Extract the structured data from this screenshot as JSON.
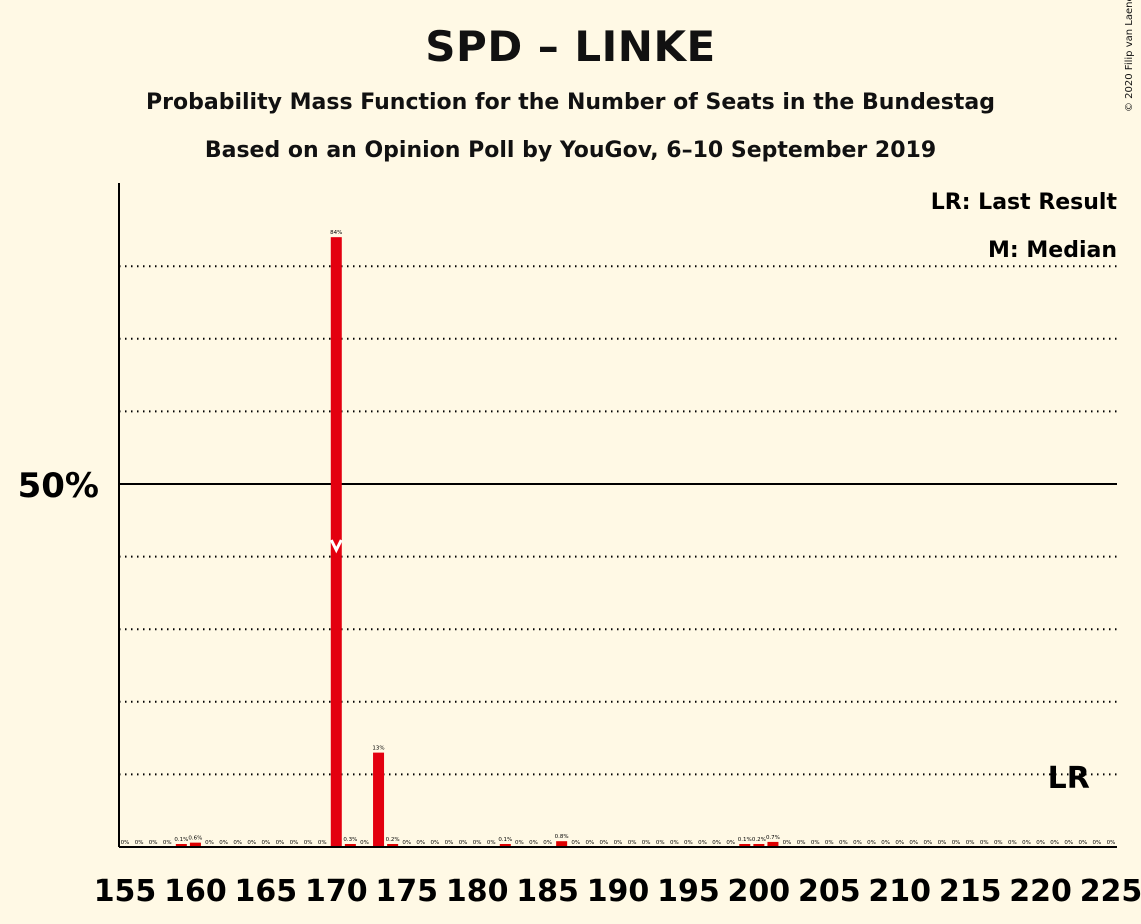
{
  "header": {
    "title": "SPD – LINKE",
    "subtitle1": "Probability Mass Function for the Number of Seats in the Bundestag",
    "subtitle2": "Based on an Opinion Poll by YouGov, 6–10 September 2019",
    "copyright": "© 2020 Filip van Laenen"
  },
  "legend": {
    "last_result": "LR: Last Result",
    "median": "M: Median"
  },
  "colors": {
    "background": "#FFF9E5",
    "bar": "#E3000F",
    "bar_alt": "#DD0000",
    "axis": "#000000"
  },
  "chart_data": {
    "type": "bar",
    "xlim": [
      155,
      225
    ],
    "ylim": [
      0,
      100
    ],
    "x_ticks": [
      155,
      160,
      165,
      170,
      175,
      180,
      185,
      190,
      195,
      200,
      205,
      210,
      215,
      220,
      225
    ],
    "y_major_tick": {
      "value": 50,
      "label": "50%"
    },
    "y_gridlines": [
      10,
      20,
      30,
      40,
      60,
      70,
      80
    ],
    "grid": true,
    "legend_position": "top-right",
    "median_seat": 170,
    "last_result_seat": 222,
    "last_result_label": "LR",
    "bars": [
      {
        "x": 155,
        "value": 0,
        "label": "0%"
      },
      {
        "x": 156,
        "value": 0,
        "label": "0%"
      },
      {
        "x": 157,
        "value": 0,
        "label": "0%"
      },
      {
        "x": 158,
        "value": 0,
        "label": "0%"
      },
      {
        "x": 159,
        "value": 0.1,
        "label": "0.1%"
      },
      {
        "x": 160,
        "value": 0.6,
        "label": "0.6%"
      },
      {
        "x": 161,
        "value": 0,
        "label": "0%"
      },
      {
        "x": 162,
        "value": 0,
        "label": "0%"
      },
      {
        "x": 163,
        "value": 0,
        "label": "0%"
      },
      {
        "x": 164,
        "value": 0,
        "label": "0%"
      },
      {
        "x": 165,
        "value": 0,
        "label": "0%"
      },
      {
        "x": 166,
        "value": 0,
        "label": "0%"
      },
      {
        "x": 167,
        "value": 0,
        "label": "0%"
      },
      {
        "x": 168,
        "value": 0,
        "label": "0%"
      },
      {
        "x": 169,
        "value": 0,
        "label": "0%"
      },
      {
        "x": 170,
        "value": 84,
        "label": "84%"
      },
      {
        "x": 171,
        "value": 0.3,
        "label": "0.3%"
      },
      {
        "x": 172,
        "value": 0,
        "label": "0%"
      },
      {
        "x": 173,
        "value": 13,
        "label": "13%"
      },
      {
        "x": 174,
        "value": 0.2,
        "label": "0.2%"
      },
      {
        "x": 175,
        "value": 0,
        "label": "0%"
      },
      {
        "x": 176,
        "value": 0,
        "label": "0%"
      },
      {
        "x": 177,
        "value": 0,
        "label": "0%"
      },
      {
        "x": 178,
        "value": 0,
        "label": "0%"
      },
      {
        "x": 179,
        "value": 0,
        "label": "0%"
      },
      {
        "x": 180,
        "value": 0,
        "label": "0%"
      },
      {
        "x": 181,
        "value": 0,
        "label": "0%"
      },
      {
        "x": 182,
        "value": 0.1,
        "label": "0.1%"
      },
      {
        "x": 183,
        "value": 0,
        "label": "0%"
      },
      {
        "x": 184,
        "value": 0,
        "label": "0%"
      },
      {
        "x": 185,
        "value": 0,
        "label": "0%"
      },
      {
        "x": 186,
        "value": 0.8,
        "label": "0.8%"
      },
      {
        "x": 187,
        "value": 0,
        "label": "0%"
      },
      {
        "x": 188,
        "value": 0,
        "label": "0%"
      },
      {
        "x": 189,
        "value": 0,
        "label": "0%"
      },
      {
        "x": 190,
        "value": 0,
        "label": "0%"
      },
      {
        "x": 191,
        "value": 0,
        "label": "0%"
      },
      {
        "x": 192,
        "value": 0,
        "label": "0%"
      },
      {
        "x": 193,
        "value": 0,
        "label": "0%"
      },
      {
        "x": 194,
        "value": 0,
        "label": "0%"
      },
      {
        "x": 195,
        "value": 0,
        "label": "0%"
      },
      {
        "x": 196,
        "value": 0,
        "label": "0%"
      },
      {
        "x": 197,
        "value": 0,
        "label": "0%"
      },
      {
        "x": 198,
        "value": 0,
        "label": "0%"
      },
      {
        "x": 199,
        "value": 0.1,
        "label": "0.1%"
      },
      {
        "x": 200,
        "value": 0.2,
        "label": "0.2%"
      },
      {
        "x": 201,
        "value": 0.7,
        "label": "0.7%"
      },
      {
        "x": 202,
        "value": 0,
        "label": "0%"
      },
      {
        "x": 203,
        "value": 0,
        "label": "0%"
      },
      {
        "x": 204,
        "value": 0,
        "label": "0%"
      },
      {
        "x": 205,
        "value": 0,
        "label": "0%"
      },
      {
        "x": 206,
        "value": 0,
        "label": "0%"
      },
      {
        "x": 207,
        "value": 0,
        "label": "0%"
      },
      {
        "x": 208,
        "value": 0,
        "label": "0%"
      },
      {
        "x": 209,
        "value": 0,
        "label": "0%"
      },
      {
        "x": 210,
        "value": 0,
        "label": "0%"
      },
      {
        "x": 211,
        "value": 0,
        "label": "0%"
      },
      {
        "x": 212,
        "value": 0,
        "label": "0%"
      },
      {
        "x": 213,
        "value": 0,
        "label": "0%"
      },
      {
        "x": 214,
        "value": 0,
        "label": "0%"
      },
      {
        "x": 215,
        "value": 0,
        "label": "0%"
      },
      {
        "x": 216,
        "value": 0,
        "label": "0%"
      },
      {
        "x": 217,
        "value": 0,
        "label": "0%"
      },
      {
        "x": 218,
        "value": 0,
        "label": "0%"
      },
      {
        "x": 219,
        "value": 0,
        "label": "0%"
      },
      {
        "x": 220,
        "value": 0,
        "label": "0%"
      },
      {
        "x": 221,
        "value": 0,
        "label": "0%"
      },
      {
        "x": 222,
        "value": 0,
        "label": "0%"
      },
      {
        "x": 223,
        "value": 0,
        "label": "0%"
      },
      {
        "x": 224,
        "value": 0,
        "label": "0%"
      },
      {
        "x": 225,
        "value": 0,
        "label": "0%"
      }
    ]
  }
}
